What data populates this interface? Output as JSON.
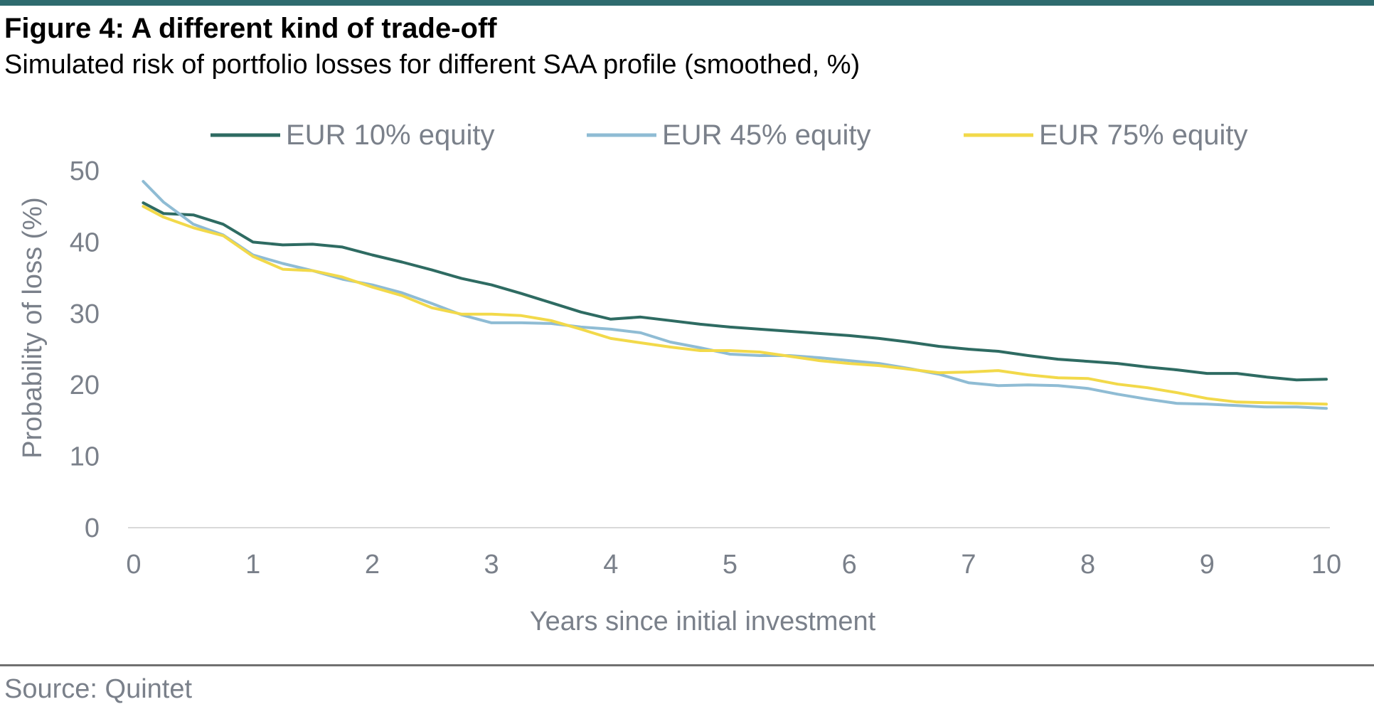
{
  "figure": {
    "title": "Figure 4: A different kind of trade-off",
    "subtitle": "Simulated risk of portfolio losses for different SAA profile (smoothed, %)",
    "source": "Source: Quintet"
  },
  "chart_data": {
    "type": "line",
    "title": "Figure 4: A different kind of trade-off",
    "subtitle": "Simulated risk of portfolio losses for different SAA profile (smoothed, %)",
    "xlabel": "Years since initial investment",
    "ylabel": "Probability of loss (%)",
    "xlim": [
      0,
      10
    ],
    "ylim": [
      0,
      50
    ],
    "xticks": [
      "0",
      "1",
      "2",
      "3",
      "4",
      "5",
      "6",
      "7",
      "8",
      "9",
      "10"
    ],
    "yticks": [
      "0",
      "10",
      "20",
      "30",
      "40",
      "50"
    ],
    "grid": false,
    "legend_position": "top",
    "x": [
      0.08,
      0.25,
      0.5,
      0.75,
      1.0,
      1.25,
      1.5,
      1.75,
      2.0,
      2.25,
      2.5,
      2.75,
      3.0,
      3.25,
      3.5,
      3.75,
      4.0,
      4.25,
      4.5,
      4.75,
      5.0,
      5.25,
      5.5,
      5.75,
      6.0,
      6.25,
      6.5,
      6.75,
      7.0,
      7.25,
      7.5,
      7.75,
      8.0,
      8.25,
      8.5,
      8.75,
      9.0,
      9.25,
      9.5,
      9.75,
      10.0
    ],
    "series": [
      {
        "name": "EUR 10% equity",
        "color": "#2e6b62",
        "values": [
          45.5,
          44.0,
          43.8,
          42.5,
          40.0,
          39.6,
          39.7,
          39.3,
          38.2,
          37.2,
          36.1,
          34.9,
          34.0,
          32.8,
          31.5,
          30.2,
          29.2,
          29.5,
          29.0,
          28.5,
          28.1,
          27.8,
          27.5,
          27.2,
          26.9,
          26.5,
          26.0,
          25.4,
          25.0,
          24.7,
          24.1,
          23.6,
          23.3,
          23.0,
          22.5,
          22.1,
          21.6,
          21.6,
          21.1,
          20.7,
          20.8
        ]
      },
      {
        "name": "EUR 45% equity",
        "color": "#8fbcd4",
        "values": [
          48.5,
          45.6,
          42.5,
          41.0,
          38.2,
          37.0,
          36.0,
          34.8,
          34.0,
          32.9,
          31.4,
          29.8,
          28.7,
          28.7,
          28.6,
          28.1,
          27.8,
          27.3,
          26.0,
          25.2,
          24.3,
          24.1,
          24.1,
          23.8,
          23.4,
          23.0,
          22.3,
          21.5,
          20.3,
          19.9,
          20.0,
          19.9,
          19.5,
          18.7,
          18.0,
          17.4,
          17.3,
          17.1,
          16.9,
          16.9,
          16.7
        ]
      },
      {
        "name": "EUR 75% equity",
        "color": "#f2d94a",
        "values": [
          45.0,
          43.5,
          42.0,
          40.9,
          38.0,
          36.2,
          36.0,
          35.1,
          33.7,
          32.5,
          30.8,
          29.9,
          29.9,
          29.7,
          29.0,
          27.8,
          26.5,
          25.9,
          25.3,
          24.8,
          24.8,
          24.6,
          24.0,
          23.4,
          23.0,
          22.7,
          22.2,
          21.7,
          21.8,
          22.0,
          21.4,
          21.0,
          20.9,
          20.1,
          19.6,
          18.9,
          18.1,
          17.6,
          17.5,
          17.4,
          17.3
        ]
      }
    ]
  }
}
